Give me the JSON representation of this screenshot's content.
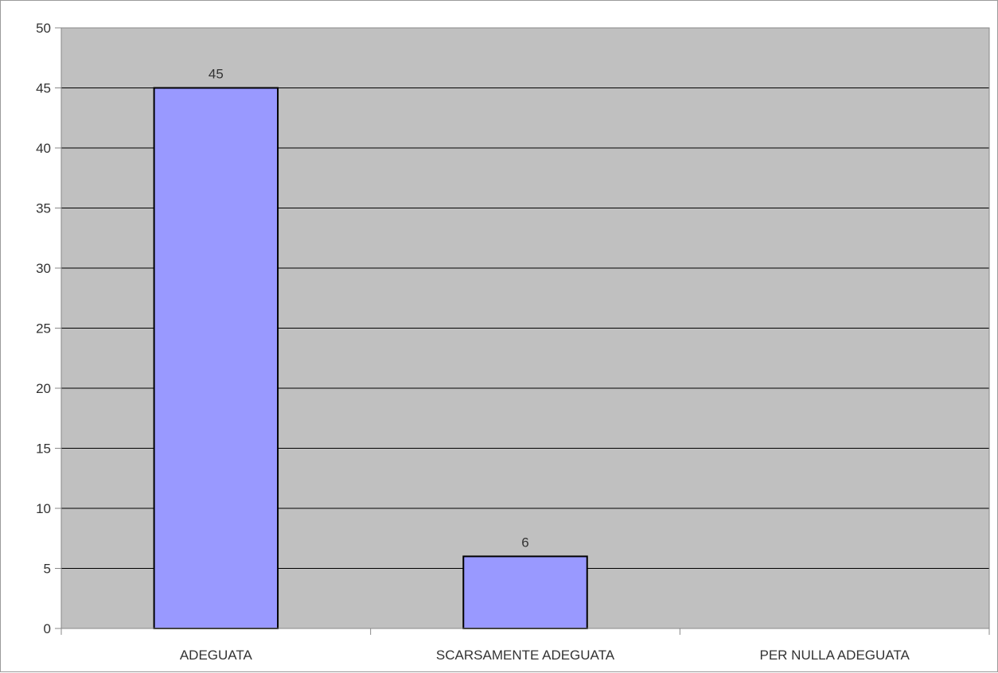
{
  "chart_data": {
    "type": "bar",
    "categories": [
      "ADEGUATA",
      "SCARSAMENTE ADEGUATA",
      "PER NULLA ADEGUATA"
    ],
    "values": [
      45,
      6,
      0
    ],
    "data_labels": [
      "45",
      "6",
      ""
    ],
    "title": "",
    "xlabel": "",
    "ylabel": "",
    "ylim": [
      0,
      50
    ],
    "yticks": [
      0,
      5,
      10,
      15,
      20,
      25,
      30,
      35,
      40,
      45,
      50
    ],
    "grid": true,
    "legend": "none",
    "colors": {
      "bar_fill": "#9999ff",
      "bar_stroke": "#000000",
      "plot_background": "#c0c0c0",
      "grid": "#000000"
    }
  }
}
